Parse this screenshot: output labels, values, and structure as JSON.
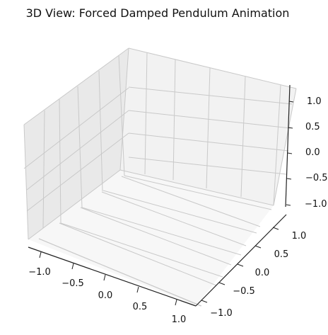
{
  "chart_data": {
    "type": "line",
    "projection": "3d",
    "title": "3D View: Forced Damped Pendulum Animation",
    "xlabel": "",
    "ylabel": "",
    "zlabel": "",
    "xlim": [
      -1.2,
      1.2
    ],
    "ylim": [
      -1.2,
      1.2
    ],
    "zlim": [
      -1.2,
      1.2
    ],
    "grid": true,
    "series": [],
    "x_ticks": [
      -1.0,
      -0.5,
      0.0,
      0.5,
      1.0
    ],
    "y_ticks": [
      -1.0,
      -0.5,
      0.0,
      0.5,
      1.0
    ],
    "z_ticks": [
      -1.0,
      -0.5,
      0.0,
      0.5,
      1.0
    ],
    "x_tick_labels": [
      "−1.0",
      "−0.5",
      "0.0",
      "0.5",
      "1.0"
    ],
    "y_tick_labels": [
      "−1.0",
      "−0.5",
      "0.0",
      "0.5",
      "1.0"
    ],
    "z_tick_labels": [
      "−1.0",
      "−0.5",
      "0.0",
      "0.5",
      "1.0"
    ]
  },
  "colors": {
    "pane_back": "#f2f2f2",
    "pane_side": "#e9e9e9",
    "pane_floor": "#f7f7f7",
    "grid": "#c9c9c9",
    "axis_line": "#222222",
    "text": "#111111"
  }
}
